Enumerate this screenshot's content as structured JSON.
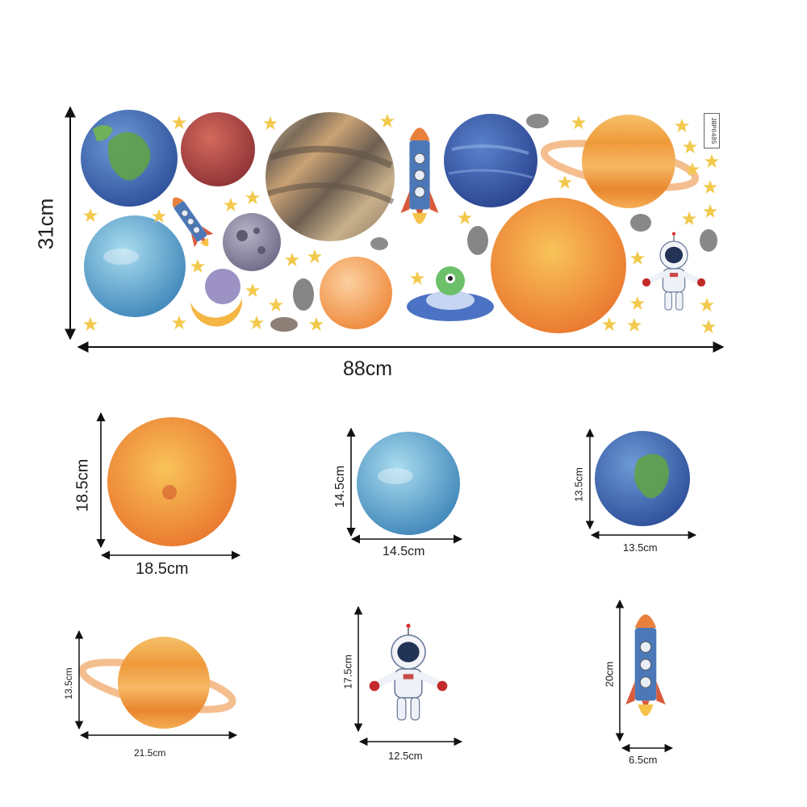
{
  "sheet": {
    "height_label": "31cm",
    "width_label": "88cm",
    "product_code": "JBP6485"
  },
  "pieces": [
    {
      "name": "orange-planet",
      "height_label": "18.5cm",
      "width_label": "18.5cm"
    },
    {
      "name": "blue-planet",
      "height_label": "14.5cm",
      "width_label": "14.5cm"
    },
    {
      "name": "earth-planet",
      "height_label": "13.5cm",
      "width_label": "13.5cm"
    },
    {
      "name": "ringed-planet",
      "height_label": "13.5cm",
      "width_label": "21.5cm"
    },
    {
      "name": "astronaut",
      "height_label": "17.5cm",
      "width_label": "12.5cm"
    },
    {
      "name": "rocket",
      "height_label": "20cm",
      "width_label": "6.5cm"
    }
  ],
  "colors": {
    "earth": "#3f6fb8",
    "land": "#5fa24a",
    "mars": "#b94a48",
    "jupiter": "#a88f72",
    "neptune": "#3a5fb0",
    "saturn": "#f0a64a",
    "sun": "#f3913a",
    "ice": "#5fa7d0",
    "moon": "#8e8aa3",
    "star": "#f2c94c"
  }
}
